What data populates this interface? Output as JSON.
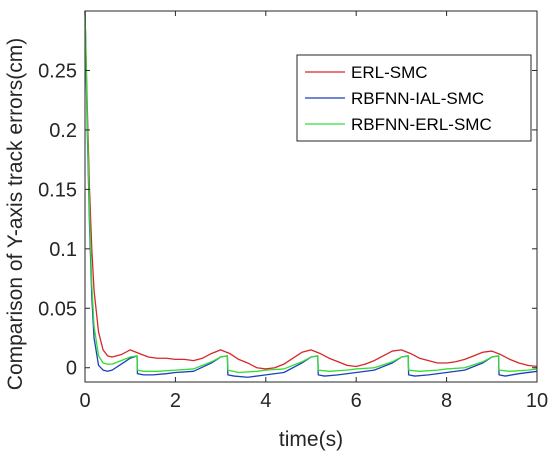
{
  "chart_data": {
    "type": "line",
    "title": "",
    "xlabel": "time(s)",
    "ylabel": "Comparison of Y-axis track errors(cm)",
    "xlim": [
      0,
      10
    ],
    "ylim": [
      -0.012,
      0.3
    ],
    "xticks": [
      0,
      2,
      4,
      6,
      8,
      10
    ],
    "xtick_labels": [
      "0",
      "2",
      "4",
      "6",
      "8",
      "10"
    ],
    "yticks": [
      0,
      0.05,
      0.1,
      0.15,
      0.2,
      0.25
    ],
    "ytick_labels": [
      "0",
      "0.05",
      "0.1",
      "0.15",
      "0.2",
      "0.25"
    ],
    "grid": false,
    "legend_position": "top-right",
    "series": [
      {
        "name": "ERL-SMC",
        "color": "#d62728",
        "x": [
          0,
          0.05,
          0.1,
          0.15,
          0.2,
          0.3,
          0.4,
          0.5,
          0.6,
          0.8,
          1.0,
          1.2,
          1.4,
          1.6,
          1.8,
          2.0,
          2.2,
          2.4,
          2.6,
          2.8,
          3.0,
          3.2,
          3.4,
          3.6,
          3.8,
          4.0,
          4.2,
          4.4,
          4.6,
          4.8,
          5.0,
          5.2,
          5.4,
          5.6,
          5.8,
          6.0,
          6.2,
          6.4,
          6.6,
          6.8,
          7.0,
          7.2,
          7.4,
          7.6,
          7.8,
          8.0,
          8.2,
          8.4,
          8.6,
          8.8,
          9.0,
          9.2,
          9.4,
          9.6,
          9.8,
          10.0
        ],
        "y": [
          0.3,
          0.22,
          0.15,
          0.1,
          0.065,
          0.03,
          0.015,
          0.01,
          0.009,
          0.011,
          0.015,
          0.012,
          0.009,
          0.008,
          0.008,
          0.007,
          0.007,
          0.006,
          0.008,
          0.012,
          0.015,
          0.012,
          0.007,
          0.004,
          0.0,
          -0.001,
          0.0,
          0.003,
          0.008,
          0.013,
          0.015,
          0.012,
          0.008,
          0.005,
          0.002,
          0.001,
          0.003,
          0.006,
          0.01,
          0.014,
          0.015,
          0.012,
          0.008,
          0.006,
          0.004,
          0.004,
          0.005,
          0.007,
          0.01,
          0.013,
          0.014,
          0.011,
          0.007,
          0.004,
          0.002,
          0.001
        ]
      },
      {
        "name": "RBFNN-IAL-SMC",
        "color": "#1f3fbf",
        "x": [
          0,
          0.05,
          0.1,
          0.15,
          0.2,
          0.3,
          0.4,
          0.5,
          0.6,
          0.8,
          1.0,
          1.15,
          1.16,
          1.3,
          1.5,
          1.8,
          2.0,
          2.4,
          2.8,
          3.0,
          3.15,
          3.16,
          3.3,
          3.6,
          4.0,
          4.4,
          4.8,
          5.0,
          5.15,
          5.16,
          5.3,
          5.6,
          6.0,
          6.4,
          6.8,
          7.0,
          7.15,
          7.16,
          7.3,
          7.6,
          8.0,
          8.4,
          8.8,
          9.0,
          9.15,
          9.16,
          9.3,
          9.6,
          10.0
        ],
        "y": [
          0.3,
          0.2,
          0.12,
          0.06,
          0.025,
          0.002,
          -0.002,
          -0.003,
          -0.002,
          0.003,
          0.008,
          0.01,
          -0.005,
          -0.006,
          -0.006,
          -0.005,
          -0.004,
          -0.003,
          0.004,
          0.009,
          0.01,
          -0.006,
          -0.007,
          -0.008,
          -0.006,
          -0.004,
          0.004,
          0.009,
          0.01,
          -0.006,
          -0.007,
          -0.006,
          -0.004,
          -0.002,
          0.004,
          0.009,
          0.01,
          -0.006,
          -0.007,
          -0.006,
          -0.004,
          -0.002,
          0.004,
          0.009,
          0.01,
          -0.006,
          -0.007,
          -0.005,
          -0.003
        ]
      },
      {
        "name": "RBFNN-ERL-SMC",
        "color": "#33dd33",
        "x": [
          0,
          0.05,
          0.1,
          0.15,
          0.2,
          0.3,
          0.4,
          0.5,
          0.6,
          0.8,
          1.0,
          1.15,
          1.16,
          1.3,
          1.6,
          2.0,
          2.4,
          2.8,
          3.0,
          3.15,
          3.16,
          3.4,
          3.8,
          4.0,
          4.4,
          4.8,
          5.0,
          5.15,
          5.16,
          5.4,
          5.8,
          6.0,
          6.4,
          6.8,
          7.0,
          7.15,
          7.16,
          7.4,
          7.8,
          8.0,
          8.4,
          8.8,
          9.0,
          9.15,
          9.16,
          9.4,
          9.8,
          10.0
        ],
        "y": [
          0.3,
          0.21,
          0.13,
          0.07,
          0.035,
          0.01,
          0.004,
          0.003,
          0.003,
          0.006,
          0.009,
          0.01,
          -0.002,
          -0.003,
          -0.003,
          -0.002,
          -0.001,
          0.005,
          0.009,
          0.01,
          -0.002,
          -0.004,
          -0.003,
          -0.002,
          -0.001,
          0.005,
          0.009,
          0.01,
          -0.002,
          -0.003,
          -0.002,
          -0.001,
          0.0,
          0.005,
          0.009,
          0.01,
          -0.002,
          -0.003,
          -0.002,
          -0.001,
          0.0,
          0.005,
          0.009,
          0.01,
          -0.002,
          -0.003,
          -0.002,
          -0.001
        ]
      }
    ]
  }
}
